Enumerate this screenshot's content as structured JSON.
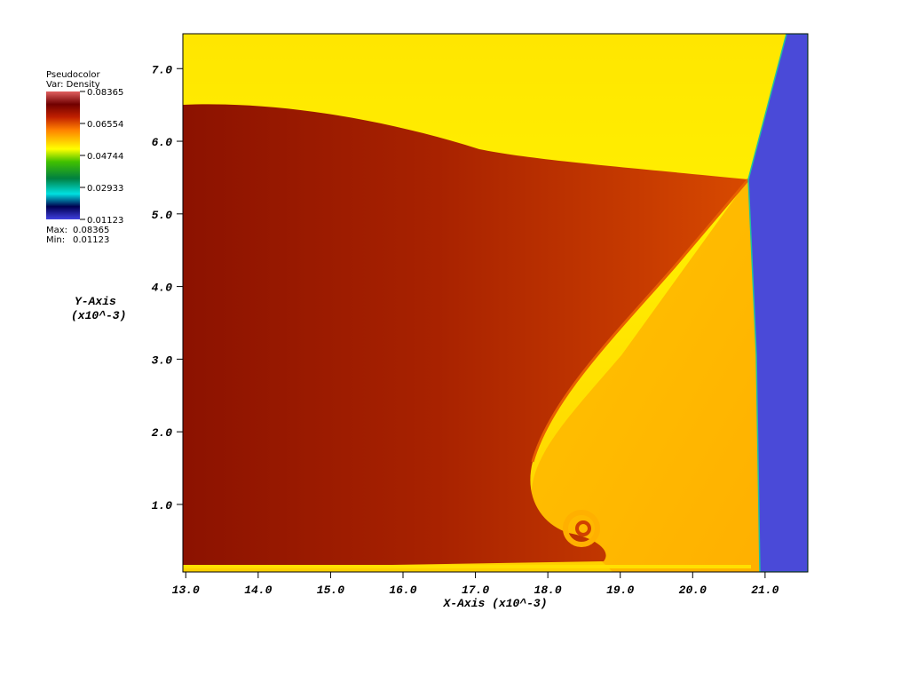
{
  "chart_data": {
    "type": "pseudocolor",
    "legend": {
      "title": "Pseudocolor",
      "variable": "Var: Density",
      "ticks": [
        0.08365,
        0.06554,
        0.04744,
        0.02933,
        0.01123
      ],
      "max_label": "Max:",
      "max": 0.08365,
      "min_label": "Min:",
      "min": 0.01123
    },
    "xlabel": "X-Axis (x10^-3)",
    "ylabel": [
      "Y-Axis",
      "(x10^-3)"
    ],
    "xlim": [
      12.96,
      21.59
    ],
    "ylim": [
      0.07,
      7.48
    ],
    "xticks": [
      {
        "value": 13,
        "label": "13.0"
      },
      {
        "value": 14,
        "label": "14.0"
      },
      {
        "value": 15,
        "label": "15.0"
      },
      {
        "value": 16,
        "label": "16.0"
      },
      {
        "value": 17,
        "label": "17.0"
      },
      {
        "value": 18,
        "label": "18.0"
      },
      {
        "value": 19,
        "label": "19.0"
      },
      {
        "value": 20,
        "label": "20.0"
      },
      {
        "value": 21,
        "label": "21.0"
      }
    ],
    "yticks": [
      {
        "value": 1,
        "label": "1.0"
      },
      {
        "value": 2,
        "label": "2.0"
      },
      {
        "value": 3,
        "label": "3.0"
      },
      {
        "value": 4,
        "label": "4.0"
      },
      {
        "value": 5,
        "label": "5.0"
      },
      {
        "value": 6,
        "label": "6.0"
      },
      {
        "value": 7,
        "label": "7.0"
      }
    ]
  }
}
